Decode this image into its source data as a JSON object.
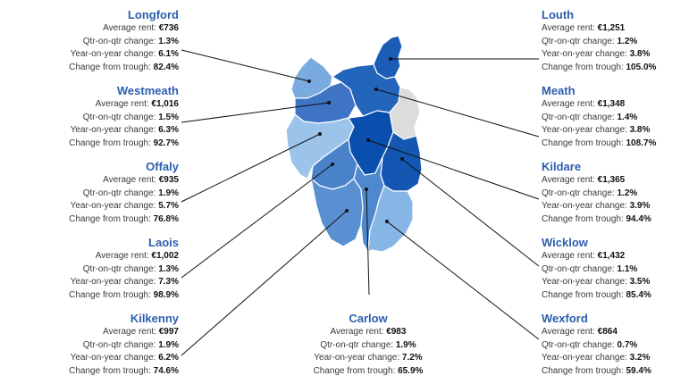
{
  "labels": {
    "avg_rent": "Average rent:",
    "qtr": "Qtr-on-qtr change:",
    "yoy": "Year-on-year change:",
    "trough": "Change from trough:"
  },
  "counties": [
    {
      "key": "longford",
      "name": "Longford",
      "avg_rent": "€736",
      "qtr": "1.3%",
      "yoy": "6.1%",
      "trough": "82.4%",
      "color": "#79abe0"
    },
    {
      "key": "westmeath",
      "name": "Westmeath",
      "avg_rent": "€1,016",
      "qtr": "1.5%",
      "yoy": "6.3%",
      "trough": "92.7%",
      "color": "#3f73c3"
    },
    {
      "key": "offaly",
      "name": "Offaly",
      "avg_rent": "€935",
      "qtr": "1.9%",
      "yoy": "5.7%",
      "trough": "76.8%",
      "color": "#9cc3ea"
    },
    {
      "key": "laois",
      "name": "Laois",
      "avg_rent": "€1,002",
      "qtr": "1.3%",
      "yoy": "7.3%",
      "trough": "98.9%",
      "color": "#4a82ca"
    },
    {
      "key": "kilkenny",
      "name": "Kilkenny",
      "avg_rent": "€997",
      "qtr": "1.9%",
      "yoy": "6.2%",
      "trough": "74.6%",
      "color": "#5a8fd2"
    },
    {
      "key": "carlow",
      "name": "Carlow",
      "avg_rent": "€983",
      "qtr": "1.9%",
      "yoy": "7.2%",
      "trough": "65.9%",
      "color": "#4f88cc"
    },
    {
      "key": "louth",
      "name": "Louth",
      "avg_rent": "€1,251",
      "qtr": "1.2%",
      "yoy": "3.8%",
      "trough": "105.0%",
      "color": "#1a5cb6"
    },
    {
      "key": "meath",
      "name": "Meath",
      "avg_rent": "€1,348",
      "qtr": "1.4%",
      "yoy": "3.8%",
      "trough": "108.7%",
      "color": "#2365bb"
    },
    {
      "key": "kildare",
      "name": "Kildare",
      "avg_rent": "€1,365",
      "qtr": "1.2%",
      "yoy": "3.9%",
      "trough": "94.4%",
      "color": "#0a4fae"
    },
    {
      "key": "wicklow",
      "name": "Wicklow",
      "avg_rent": "€1,432",
      "qtr": "1.1%",
      "yoy": "3.5%",
      "trough": "85.4%",
      "color": "#1457b3"
    },
    {
      "key": "wexford",
      "name": "Wexford",
      "avg_rent": "€864",
      "qtr": "0.7%",
      "yoy": "3.2%",
      "trough": "59.4%",
      "color": "#86b6e6"
    }
  ],
  "dublin_color": "#dcdcdc"
}
